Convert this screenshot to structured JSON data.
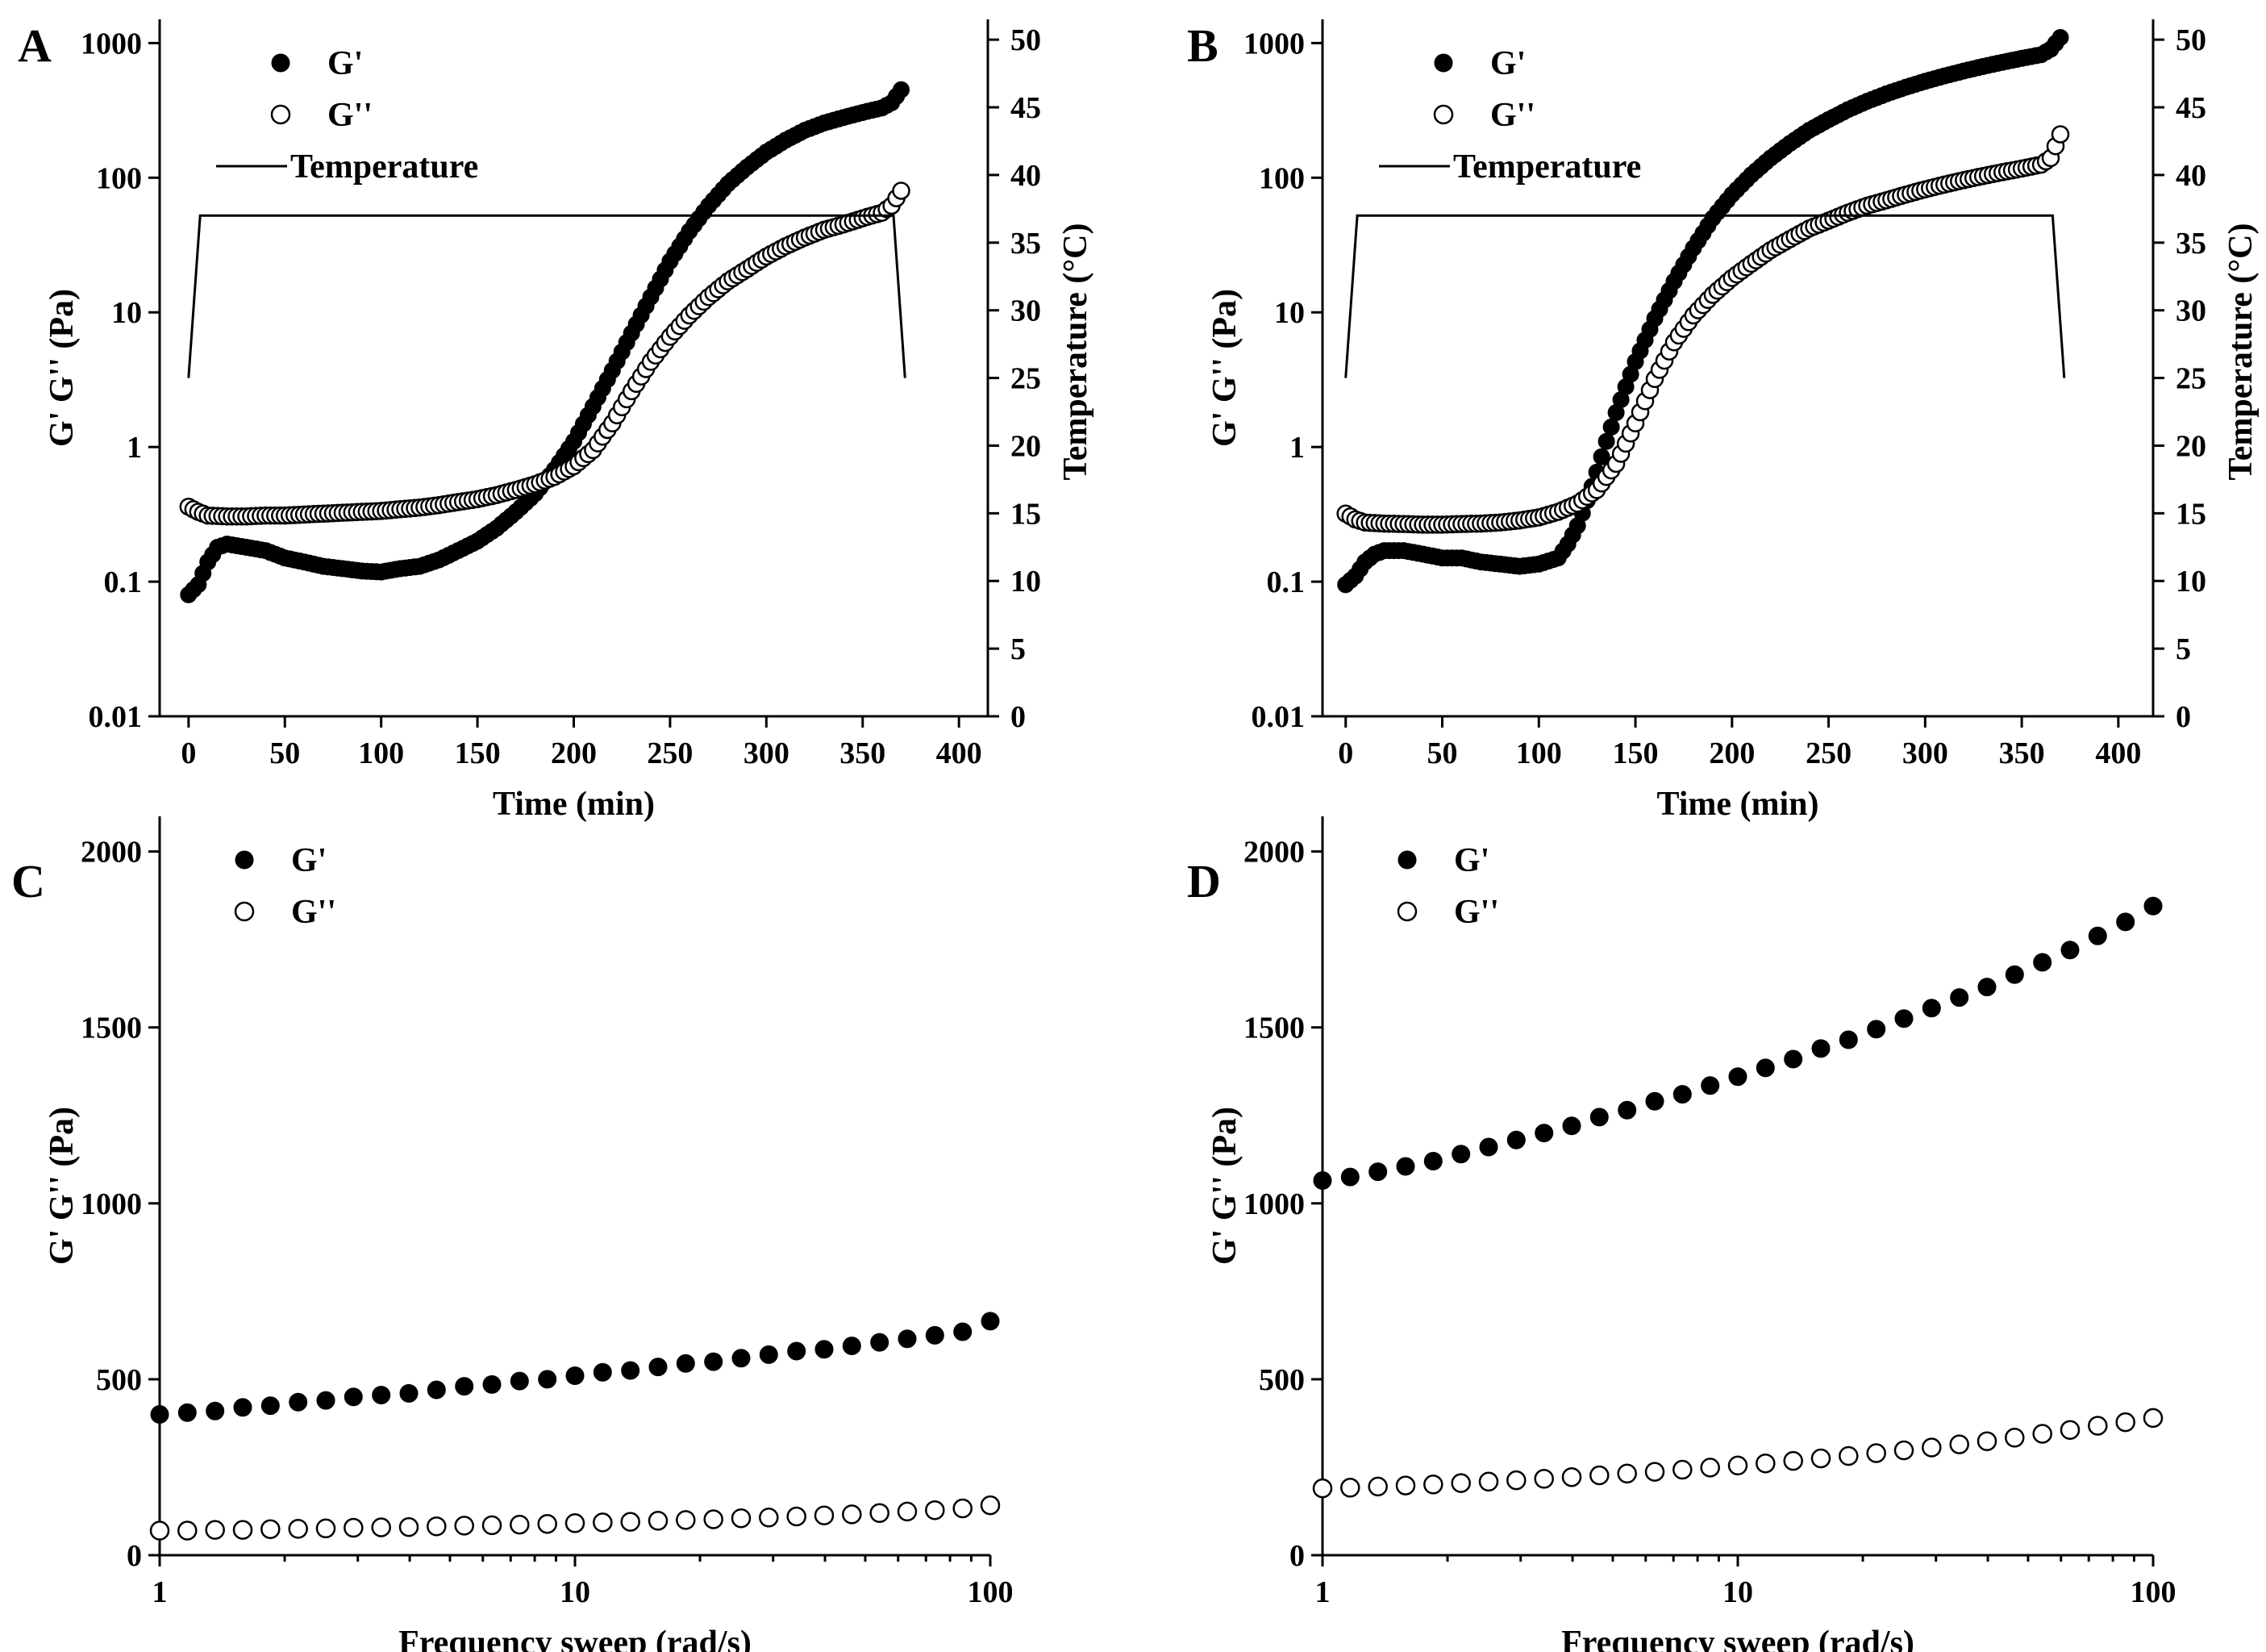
{
  "colors": {
    "ink": "#000000",
    "background": "#ffffff",
    "open_marker_fill": "#ffffff"
  },
  "chart_data": [
    {
      "panel": "A",
      "type": "scatter",
      "title": "",
      "xlabel": "Time (min)",
      "ylabel": "G' G'' (Pa)",
      "ylabel_right": "Temperature (°C)",
      "xscale": "linear",
      "yscale": "log",
      "xlim": [
        -15,
        415
      ],
      "ylim": [
        0.01,
        1500
      ],
      "ylim_right": [
        0,
        51.5
      ],
      "x_ticks": [
        "0",
        "50",
        "100",
        "150",
        "200",
        "250",
        "300",
        "350",
        "400"
      ],
      "y_ticks": [
        "0.01",
        "0.1",
        "1",
        "10",
        "100",
        "1000"
      ],
      "y_ticks_right": [
        "0",
        "5",
        "10",
        "15",
        "20",
        "25",
        "30",
        "35",
        "40",
        "45",
        "50"
      ],
      "legend": {
        "position": "top-left",
        "entries": [
          "G'",
          "G''",
          "Temperature"
        ]
      },
      "series": [
        {
          "name": "G'",
          "marker": "filled-circle",
          "x": [
            0,
            5,
            10,
            15,
            20,
            30,
            40,
            50,
            60,
            70,
            80,
            90,
            100,
            110,
            120,
            130,
            140,
            150,
            160,
            170,
            180,
            190,
            200,
            210,
            220,
            230,
            240,
            250,
            260,
            270,
            280,
            290,
            300,
            310,
            320,
            330,
            340,
            350,
            360,
            365,
            370
          ],
          "y": [
            0.08,
            0.095,
            0.14,
            0.18,
            0.19,
            0.18,
            0.17,
            0.15,
            0.14,
            0.13,
            0.125,
            0.12,
            0.118,
            0.125,
            0.13,
            0.145,
            0.17,
            0.2,
            0.25,
            0.33,
            0.45,
            0.68,
            1.1,
            2.0,
            3.7,
            7.0,
            13,
            24,
            40,
            62,
            90,
            120,
            155,
            190,
            225,
            255,
            280,
            305,
            330,
            360,
            450
          ]
        },
        {
          "name": "G''",
          "marker": "open-circle",
          "x": [
            0,
            5,
            10,
            20,
            30,
            40,
            50,
            60,
            70,
            80,
            90,
            100,
            110,
            120,
            130,
            140,
            150,
            160,
            170,
            180,
            190,
            200,
            210,
            220,
            230,
            240,
            250,
            260,
            270,
            280,
            290,
            300,
            310,
            320,
            330,
            340,
            350,
            360,
            365,
            370
          ],
          "y": [
            0.36,
            0.33,
            0.31,
            0.305,
            0.305,
            0.31,
            0.31,
            0.315,
            0.32,
            0.325,
            0.33,
            0.335,
            0.345,
            0.355,
            0.37,
            0.39,
            0.41,
            0.44,
            0.48,
            0.53,
            0.6,
            0.72,
            0.95,
            1.5,
            2.6,
            4.3,
            6.6,
            9.5,
            13,
            17,
            21,
            26,
            31,
            36,
            41,
            45,
            50,
            55,
            62,
            80
          ]
        },
        {
          "name": "Temperature",
          "marker": "line",
          "axis": "right",
          "x": [
            0,
            6,
            366,
            372
          ],
          "y": [
            25,
            37,
            37,
            25
          ]
        }
      ]
    },
    {
      "panel": "B",
      "type": "scatter",
      "title": "",
      "xlabel": "Time  (min)",
      "ylabel": "G' G'' (Pa)",
      "ylabel_right": "Temperature (°C)",
      "xscale": "linear",
      "yscale": "log",
      "xlim": [
        -12,
        418
      ],
      "ylim": [
        0.01,
        1500
      ],
      "ylim_right": [
        0,
        51.5
      ],
      "x_ticks": [
        "0",
        "50",
        "100",
        "150",
        "200",
        "250",
        "300",
        "350",
        "400"
      ],
      "y_ticks": [
        "0.01",
        "0.1",
        "1",
        "10",
        "100",
        "1000"
      ],
      "y_ticks_right": [
        "0",
        "5",
        "10",
        "15",
        "20",
        "25",
        "30",
        "35",
        "40",
        "45",
        "50"
      ],
      "legend": {
        "position": "top-left",
        "entries": [
          "G'",
          "G''",
          "Temperature"
        ]
      },
      "series": [
        {
          "name": "G'",
          "marker": "filled-circle",
          "x": [
            0,
            5,
            10,
            15,
            20,
            30,
            40,
            50,
            60,
            70,
            80,
            90,
            100,
            110,
            115,
            120,
            125,
            130,
            135,
            140,
            145,
            150,
            160,
            170,
            180,
            190,
            200,
            210,
            220,
            230,
            240,
            250,
            260,
            270,
            280,
            290,
            300,
            310,
            320,
            330,
            340,
            350,
            360,
            365,
            370
          ],
          "y": [
            0.095,
            0.11,
            0.14,
            0.16,
            0.17,
            0.17,
            0.16,
            0.15,
            0.15,
            0.14,
            0.135,
            0.13,
            0.135,
            0.15,
            0.19,
            0.26,
            0.4,
            0.65,
            1.1,
            1.8,
            2.8,
            4.3,
            9,
            17,
            30,
            50,
            75,
            105,
            140,
            180,
            225,
            270,
            320,
            370,
            420,
            470,
            520,
            570,
            620,
            670,
            720,
            770,
            820,
            900,
            1100
          ]
        },
        {
          "name": "G''",
          "marker": "open-circle",
          "x": [
            0,
            5,
            10,
            20,
            30,
            40,
            50,
            60,
            70,
            80,
            90,
            100,
            110,
            120,
            130,
            140,
            150,
            160,
            170,
            180,
            190,
            200,
            210,
            220,
            230,
            240,
            250,
            260,
            270,
            280,
            290,
            300,
            310,
            320,
            330,
            340,
            350,
            360,
            365,
            370
          ],
          "y": [
            0.32,
            0.29,
            0.275,
            0.27,
            0.268,
            0.265,
            0.265,
            0.268,
            0.27,
            0.275,
            0.285,
            0.3,
            0.33,
            0.38,
            0.48,
            0.75,
            1.5,
            3.2,
            6,
            9.5,
            13.5,
            18,
            23,
            29,
            35,
            42,
            48,
            55,
            62,
            68,
            75,
            82,
            89,
            96,
            103,
            110,
            117,
            125,
            140,
            210
          ]
        },
        {
          "name": "Temperature",
          "marker": "line",
          "axis": "right",
          "x": [
            0,
            6,
            366,
            372
          ],
          "y": [
            25,
            37,
            37,
            25
          ]
        }
      ]
    },
    {
      "panel": "C",
      "type": "scatter",
      "title": "",
      "xlabel": "Frequency sweep (rad/s)",
      "ylabel": "G' G'' (Pa)",
      "xscale": "log",
      "yscale": "linear",
      "xlim": [
        1,
        100
      ],
      "ylim": [
        0,
        2100
      ],
      "x_ticks": [
        "1",
        "10",
        "100"
      ],
      "y_ticks": [
        "0",
        "500",
        "1000",
        "1500",
        "2000"
      ],
      "legend": {
        "position": "top-left",
        "entries": [
          "G'",
          "G''"
        ]
      },
      "series": [
        {
          "name": "G'",
          "marker": "filled-circle",
          "x_range": [
            1,
            100
          ],
          "points": 31,
          "y": [
            400,
            405,
            410,
            420,
            425,
            435,
            440,
            450,
            455,
            460,
            470,
            480,
            485,
            495,
            500,
            510,
            520,
            525,
            535,
            545,
            550,
            560,
            570,
            580,
            585,
            595,
            605,
            615,
            625,
            635,
            665
          ]
        },
        {
          "name": "G''",
          "marker": "open-circle",
          "x_range": [
            1,
            100
          ],
          "points": 31,
          "y": [
            70,
            70,
            72,
            72,
            74,
            75,
            76,
            78,
            79,
            80,
            82,
            84,
            85,
            87,
            89,
            91,
            93,
            95,
            98,
            100,
            102,
            105,
            107,
            110,
            113,
            116,
            120,
            124,
            128,
            133,
            142
          ]
        }
      ]
    },
    {
      "panel": "D",
      "type": "scatter",
      "title": "",
      "xlabel": "Frequency sweep (rad/s)",
      "ylabel": "G' G'' (Pa)",
      "xscale": "log",
      "yscale": "linear",
      "xlim": [
        1,
        100
      ],
      "ylim": [
        0,
        2100
      ],
      "x_ticks": [
        "1",
        "10",
        "100"
      ],
      "y_ticks": [
        "0",
        "500",
        "1000",
        "1500",
        "2000"
      ],
      "legend": {
        "position": "top-left",
        "entries": [
          "G'",
          "G''"
        ]
      },
      "series": [
        {
          "name": "G'",
          "marker": "filled-circle",
          "x_range": [
            1,
            100
          ],
          "points": 31,
          "y": [
            1065,
            1075,
            1090,
            1105,
            1120,
            1140,
            1160,
            1180,
            1200,
            1220,
            1245,
            1265,
            1290,
            1310,
            1335,
            1360,
            1385,
            1410,
            1440,
            1465,
            1495,
            1525,
            1555,
            1585,
            1615,
            1650,
            1685,
            1720,
            1760,
            1800,
            1845
          ]
        },
        {
          "name": "G''",
          "marker": "open-circle",
          "x_range": [
            1,
            100
          ],
          "points": 31,
          "y": [
            190,
            192,
            195,
            198,
            201,
            205,
            209,
            213,
            217,
            222,
            227,
            232,
            237,
            243,
            249,
            255,
            261,
            268,
            275,
            282,
            290,
            298,
            306,
            315,
            324,
            334,
            345,
            356,
            368,
            378,
            390
          ]
        }
      ]
    }
  ]
}
